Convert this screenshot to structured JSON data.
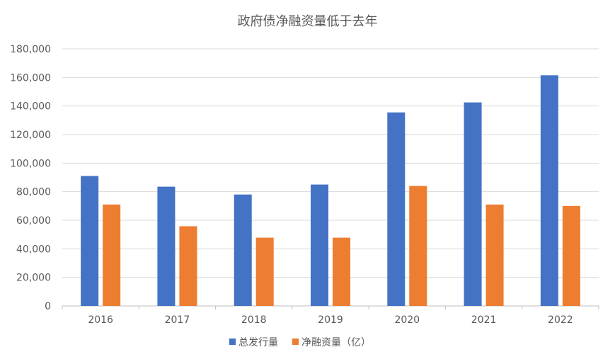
{
  "chart_data": {
    "type": "bar",
    "title": "政府债净融资量低于去年",
    "categories": [
      "2016",
      "2017",
      "2018",
      "2019",
      "2020",
      "2021",
      "2022"
    ],
    "series": [
      {
        "name": "总发行量",
        "color": "#4472C4",
        "values": [
          91000,
          83500,
          78000,
          85000,
          135500,
          142500,
          161500
        ]
      },
      {
        "name": "净融资量（亿）",
        "color": "#ED7D31",
        "values": [
          71000,
          55800,
          47800,
          47800,
          84000,
          71000,
          70000
        ]
      }
    ],
    "ylim": [
      0,
      180000
    ],
    "yticks": [
      "0",
      "20,000",
      "40,000",
      "60,000",
      "80,000",
      "100,000",
      "120,000",
      "140,000",
      "160,000",
      "180,000"
    ],
    "grid": true,
    "legend_position": "bottom"
  }
}
